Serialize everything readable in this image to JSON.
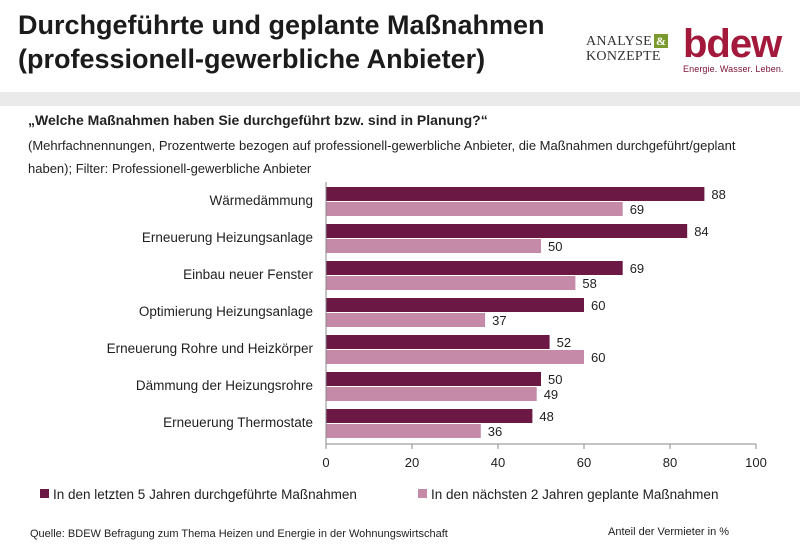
{
  "header": {
    "title_line1": "Durchgeführte und geplante Maßnahmen",
    "title_line2": "(professionell-gewerbliche Anbieter)",
    "logo_ak_line1": "ANALYSE",
    "logo_ak_amp": "&",
    "logo_ak_line2": "KONZEPTE",
    "logo_bdew": "bdew",
    "logo_bdew_claim": "Energie. Wasser. Leben.",
    "colors": {
      "bdew": "#a3193b",
      "ak_amp": "#7a9a2e"
    }
  },
  "question": "„Welche Maßnahmen haben Sie durchgeführt bzw. sind in Planung?“",
  "subtitle": "(Mehrfachnennungen, Prozentwerte bezogen auf professionell-gewerbliche Anbieter, die Maßnahmen durchgeführt/geplant haben); Filter: Professionell-gewerbliche Anbieter",
  "chart_data": {
    "type": "bar",
    "orientation": "horizontal",
    "categories": [
      "Wärmedämmung",
      "Erneuerung Heizungsanlage",
      "Einbau neuer Fenster",
      "Optimierung Heizungsanlage",
      "Erneuerung Rohre und Heizkörper",
      "Dämmung der Heizungsrohre",
      "Erneuerung Thermostate"
    ],
    "series": [
      {
        "name": "In den letzten 5 Jahren durchgeführte Maßnahmen",
        "color": "#6b1845",
        "values": [
          88,
          84,
          69,
          60,
          52,
          50,
          48
        ]
      },
      {
        "name": "In den nächsten 2 Jahren geplante Maßnahmen",
        "color": "#c48aa8",
        "values": [
          69,
          50,
          58,
          37,
          60,
          49,
          36
        ]
      }
    ],
    "xlim": [
      0,
      100
    ],
    "xticks": [
      0,
      20,
      40,
      60,
      80,
      100
    ],
    "grid": false,
    "legend_position": "bottom",
    "xlabel": "Anteil der Vermieter in %"
  },
  "footer": {
    "source": "Quelle: BDEW Befragung zum Thema Heizen und Energie in der Wohnungswirtschaft"
  }
}
